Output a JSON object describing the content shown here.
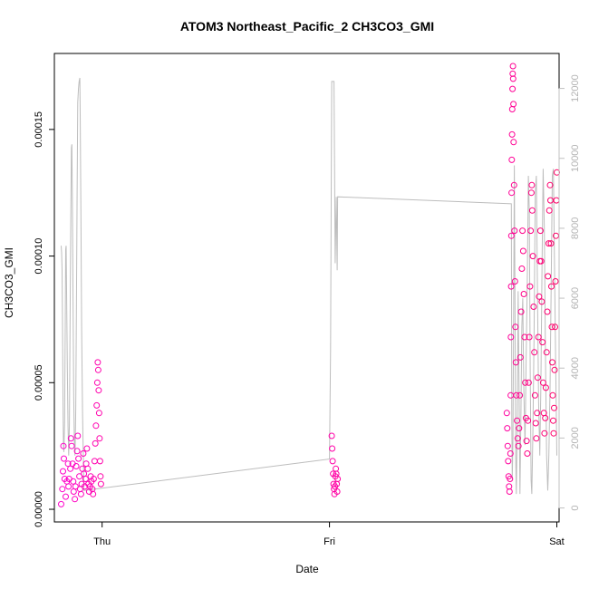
{
  "chart_data": {
    "type": "scatter",
    "title": "ATOM3 Northeast_Pacific_2 CH3CO3_GMI",
    "xlabel": "Date",
    "ylabel": "CH3CO3_GMI",
    "x_ticks": [
      "Thu",
      "Fri",
      "Sat"
    ],
    "x_tick_days": [
      0,
      1,
      2
    ],
    "xlim_days": [
      -0.21,
      2.01
    ],
    "y_left": {
      "lim": [
        -5e-06,
        0.00018
      ],
      "ticks": [
        0.0,
        5e-05,
        0.0001,
        0.00015
      ],
      "tick_labels": [
        "0.00000",
        "0.00005",
        "0.00010",
        "0.00015"
      ]
    },
    "y_right": {
      "lim": [
        -400,
        13000
      ],
      "ticks": [
        0,
        2000,
        4000,
        6000,
        8000,
        10000,
        12000
      ],
      "tick_labels": [
        "0",
        "2000",
        "4000",
        "6000",
        "8000",
        "10000",
        "12000"
      ],
      "color": "#c0c0c0"
    },
    "colors": {
      "point_early": "#ff00cc",
      "point_late": "#ff0066",
      "secondary_line": "#bdbdbd",
      "axis": "#000000"
    },
    "series": [
      {
        "kind": "points",
        "axis": "left",
        "values": [
          [
            -0.18,
            2e-06
          ],
          [
            -0.175,
            8e-06
          ],
          [
            -0.172,
            1.5e-05
          ],
          [
            -0.17,
            2.5e-05
          ],
          [
            -0.168,
            2e-05
          ],
          [
            -0.165,
            1.2e-05
          ],
          [
            -0.16,
            5e-06
          ],
          [
            -0.155,
            1.1e-05
          ],
          [
            -0.15,
            1.8e-05
          ],
          [
            -0.148,
            9e-06
          ],
          [
            -0.145,
            1.2e-05
          ],
          [
            -0.14,
            1.6e-05
          ],
          [
            -0.137,
            2.8e-05
          ],
          [
            -0.134,
            2.5e-05
          ],
          [
            -0.13,
            1.8e-05
          ],
          [
            -0.127,
            1.1e-05
          ],
          [
            -0.125,
            7e-06
          ],
          [
            -0.12,
            4e-06
          ],
          [
            -0.117,
            9e-06
          ],
          [
            -0.114,
            1.7e-05
          ],
          [
            -0.11,
            2.3e-05
          ],
          [
            -0.107,
            2.9e-05
          ],
          [
            -0.104,
            2e-05
          ],
          [
            -0.1,
            1.3e-05
          ],
          [
            -0.097,
            8e-06
          ],
          [
            -0.093,
            6e-06
          ],
          [
            -0.09,
            1e-05
          ],
          [
            -0.087,
            1.6e-05
          ],
          [
            -0.083,
            2.2e-05
          ],
          [
            -0.08,
            1.4e-05
          ],
          [
            -0.077,
            9e-06
          ],
          [
            -0.073,
            1.2e-05
          ],
          [
            -0.07,
            1.8e-05
          ],
          [
            -0.067,
            2.4e-05
          ],
          [
            -0.063,
            1.6e-05
          ],
          [
            -0.06,
            1e-05
          ],
          [
            -0.057,
            7e-06
          ],
          [
            -0.053,
            9e-06
          ],
          [
            -0.05,
            1.3e-05
          ],
          [
            -0.047,
            1.1e-05
          ],
          [
            -0.043,
            8e-06
          ],
          [
            -0.04,
            6e-06
          ],
          [
            -0.037,
            1.2e-05
          ],
          [
            -0.033,
            1.9e-05
          ],
          [
            -0.03,
            2.6e-05
          ],
          [
            -0.027,
            3.3e-05
          ],
          [
            -0.024,
            4.1e-05
          ],
          [
            -0.021,
            5e-05
          ],
          [
            -0.019,
            5.8e-05
          ],
          [
            -0.017,
            5.5e-05
          ],
          [
            -0.015,
            4.7e-05
          ],
          [
            -0.013,
            3.8e-05
          ],
          [
            -0.011,
            2.8e-05
          ],
          [
            -0.009,
            1.9e-05
          ],
          [
            -0.007,
            1.3e-05
          ],
          [
            -0.005,
            1e-05
          ],
          [
            1.01,
            2.9e-05
          ],
          [
            1.012,
            2.4e-05
          ],
          [
            1.014,
            1.9e-05
          ],
          [
            1.016,
            1.4e-05
          ],
          [
            1.018,
            1e-05
          ],
          [
            1.02,
            8e-06
          ],
          [
            1.022,
            6e-06
          ],
          [
            1.024,
            9e-06
          ],
          [
            1.026,
            1.3e-05
          ],
          [
            1.028,
            1.6e-05
          ],
          [
            1.03,
            1.4e-05
          ],
          [
            1.032,
            1e-05
          ],
          [
            1.034,
            7e-06
          ],
          [
            1.036,
            1.2e-05
          ],
          [
            1.78,
            3.8e-05
          ],
          [
            1.782,
            3.2e-05
          ],
          [
            1.784,
            2.5e-05
          ],
          [
            1.786,
            1.9e-05
          ],
          [
            1.788,
            1.3e-05
          ],
          [
            1.79,
            9e-06
          ],
          [
            1.792,
            7e-06
          ],
          [
            1.794,
            1.2e-05
          ],
          [
            1.796,
            2.2e-05
          ],
          [
            1.797,
            4.5e-05
          ],
          [
            1.798,
            6.8e-05
          ],
          [
            1.799,
            8.8e-05
          ],
          [
            1.8,
            0.000108
          ],
          [
            1.801,
            0.000125
          ],
          [
            1.802,
            0.000138
          ],
          [
            1.803,
            0.000148
          ],
          [
            1.804,
            0.000158
          ],
          [
            1.805,
            0.000166
          ],
          [
            1.806,
            0.000172
          ],
          [
            1.807,
            0.000175
          ],
          [
            1.808,
            0.00017
          ],
          [
            1.809,
            0.00016
          ],
          [
            1.81,
            0.000145
          ],
          [
            1.812,
            0.000128
          ],
          [
            1.814,
            0.00011
          ],
          [
            1.816,
            9e-05
          ],
          [
            1.818,
            7.2e-05
          ],
          [
            1.82,
            5.8e-05
          ],
          [
            1.822,
            4.5e-05
          ],
          [
            1.825,
            3.5e-05
          ],
          [
            1.828,
            2.8e-05
          ],
          [
            1.831,
            2.5e-05
          ],
          [
            1.834,
            3.2e-05
          ],
          [
            1.837,
            4.5e-05
          ],
          [
            1.84,
            6e-05
          ],
          [
            1.843,
            7.8e-05
          ],
          [
            1.846,
            9.5e-05
          ],
          [
            1.849,
            0.00011
          ],
          [
            1.852,
            0.000102
          ],
          [
            1.855,
            8.5e-05
          ],
          [
            1.858,
            6.8e-05
          ],
          [
            1.861,
            5e-05
          ],
          [
            1.864,
            3.6e-05
          ],
          [
            1.867,
            2.7e-05
          ],
          [
            1.87,
            2.2e-05
          ],
          [
            1.873,
            3.5e-05
          ],
          [
            1.876,
            5e-05
          ],
          [
            1.879,
            6.8e-05
          ],
          [
            1.882,
            8.8e-05
          ],
          [
            1.885,
            0.00011
          ],
          [
            1.888,
            0.000125
          ],
          [
            1.89,
            0.000128
          ],
          [
            1.892,
            0.000118
          ],
          [
            1.895,
            0.0001
          ],
          [
            1.898,
            8e-05
          ],
          [
            1.901,
            6.2e-05
          ],
          [
            1.904,
            4.5e-05
          ],
          [
            1.907,
            3.4e-05
          ],
          [
            1.91,
            2.8e-05
          ],
          [
            1.913,
            3.8e-05
          ],
          [
            1.916,
            5.2e-05
          ],
          [
            1.919,
            6.8e-05
          ],
          [
            1.922,
            8.4e-05
          ],
          [
            1.925,
            9.8e-05
          ],
          [
            1.928,
            0.00011
          ],
          [
            1.931,
            9.8e-05
          ],
          [
            1.934,
            8.2e-05
          ],
          [
            1.937,
            6.6e-05
          ],
          [
            1.94,
            5e-05
          ],
          [
            1.943,
            3.8e-05
          ],
          [
            1.946,
            3e-05
          ],
          [
            1.949,
            3.6e-05
          ],
          [
            1.952,
            4.8e-05
          ],
          [
            1.955,
            6.2e-05
          ],
          [
            1.958,
            7.8e-05
          ],
          [
            1.961,
            9.2e-05
          ],
          [
            1.964,
            0.000105
          ],
          [
            1.967,
            0.000118
          ],
          [
            1.97,
            0.000128
          ],
          [
            1.972,
            0.000122
          ],
          [
            1.974,
            0.000105
          ],
          [
            1.976,
            8.8e-05
          ],
          [
            1.978,
            7.2e-05
          ],
          [
            1.98,
            5.8e-05
          ],
          [
            1.982,
            4.5e-05
          ],
          [
            1.984,
            3.5e-05
          ],
          [
            1.986,
            3e-05
          ],
          [
            1.988,
            4e-05
          ],
          [
            1.99,
            5.5e-05
          ],
          [
            1.992,
            7.2e-05
          ],
          [
            1.994,
            9e-05
          ],
          [
            1.996,
            0.000108
          ],
          [
            1.998,
            0.000122
          ],
          [
            2.0,
            0.000133
          ]
        ]
      },
      {
        "kind": "line",
        "axis": "right",
        "values": [
          [
            -0.18,
            7500
          ],
          [
            -0.178,
            7300
          ],
          [
            -0.176,
            6800
          ],
          [
            -0.174,
            5200
          ],
          [
            -0.172,
            3200
          ],
          [
            -0.17,
            1800
          ],
          [
            -0.168,
            1600
          ],
          [
            -0.165,
            2500
          ],
          [
            -0.162,
            5200
          ],
          [
            -0.16,
            7400
          ],
          [
            -0.158,
            7500
          ],
          [
            -0.156,
            6200
          ],
          [
            -0.153,
            4000
          ],
          [
            -0.15,
            2300
          ],
          [
            -0.147,
            1500
          ],
          [
            -0.144,
            2400
          ],
          [
            -0.141,
            5200
          ],
          [
            -0.138,
            8200
          ],
          [
            -0.135,
            10300
          ],
          [
            -0.133,
            10400
          ],
          [
            -0.131,
            9000
          ],
          [
            -0.128,
            6000
          ],
          [
            -0.125,
            3300
          ],
          [
            -0.122,
            1800
          ],
          [
            -0.119,
            1500
          ],
          [
            -0.116,
            2800
          ],
          [
            -0.113,
            5600
          ],
          [
            -0.11,
            9000
          ],
          [
            -0.107,
            11600
          ],
          [
            -0.104,
            12000
          ],
          [
            -0.101,
            12200
          ],
          [
            -0.098,
            12300
          ],
          [
            -0.096,
            11000
          ],
          [
            -0.093,
            8000
          ],
          [
            -0.09,
            5100
          ],
          [
            -0.086,
            2700
          ],
          [
            -0.08,
            500
          ],
          [
            1.0,
            1400
          ],
          [
            1.005,
            4500
          ],
          [
            1.008,
            9500
          ],
          [
            1.01,
            12200
          ],
          [
            1.02,
            12200
          ],
          [
            1.025,
            7000
          ],
          [
            1.03,
            8900
          ],
          [
            1.034,
            6800
          ],
          [
            1.036,
            8900
          ],
          [
            1.8,
            8700
          ],
          [
            1.802,
            2500
          ],
          [
            1.804,
            800
          ],
          [
            1.807,
            2000
          ],
          [
            1.81,
            5500
          ],
          [
            1.813,
            9800
          ],
          [
            1.816,
            6000
          ],
          [
            1.819,
            1500
          ],
          [
            1.822,
            400
          ],
          [
            1.826,
            2400
          ],
          [
            1.83,
            6200
          ],
          [
            1.834,
            3500
          ],
          [
            1.838,
            400
          ],
          [
            1.842,
            2500
          ],
          [
            1.846,
            5200
          ],
          [
            1.85,
            6000
          ],
          [
            1.855,
            3300
          ],
          [
            1.86,
            1800
          ],
          [
            1.865,
            4200
          ],
          [
            1.87,
            6500
          ],
          [
            1.875,
            9500
          ],
          [
            1.879,
            8500
          ],
          [
            1.883,
            4000
          ],
          [
            1.887,
            800
          ],
          [
            1.89,
            400
          ],
          [
            1.895,
            2200
          ],
          [
            1.9,
            5000
          ],
          [
            1.905,
            9000
          ],
          [
            1.91,
            9500
          ],
          [
            1.915,
            6000
          ],
          [
            1.92,
            3000
          ],
          [
            1.925,
            1500
          ],
          [
            1.93,
            3500
          ],
          [
            1.935,
            7000
          ],
          [
            1.94,
            9700
          ],
          [
            1.945,
            8000
          ],
          [
            1.95,
            4500
          ],
          [
            1.955,
            1500
          ],
          [
            1.96,
            500
          ],
          [
            1.965,
            1500
          ],
          [
            1.97,
            3400
          ],
          [
            1.975,
            6200
          ],
          [
            1.98,
            9500
          ],
          [
            1.985,
            9700
          ],
          [
            1.99,
            6800
          ],
          [
            1.995,
            4200
          ],
          [
            2.0,
            1500
          ]
        ]
      }
    ]
  }
}
